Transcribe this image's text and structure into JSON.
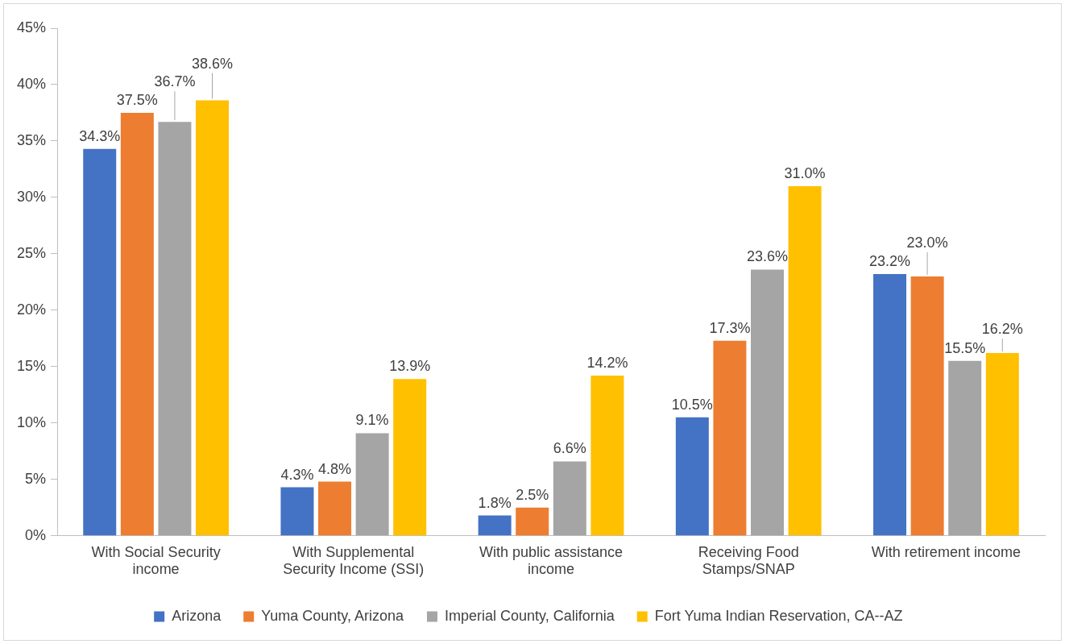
{
  "chart_data": {
    "type": "bar",
    "categories": [
      "With Social Security income",
      "With Supplemental Security Income (SSI)",
      "With public assistance income",
      "Receiving Food Stamps/SNAP",
      "With retirement income"
    ],
    "series": [
      {
        "name": "Arizona",
        "color": "#4472c4",
        "values": [
          34.3,
          4.3,
          1.8,
          10.5,
          23.2
        ],
        "value_labels": [
          "34.3%",
          "4.3%",
          "1.8%",
          "10.5%",
          "23.2%"
        ]
      },
      {
        "name": "Yuma County, Arizona",
        "color": "#ed7d31",
        "values": [
          37.5,
          4.8,
          2.5,
          17.3,
          23.0
        ],
        "value_labels": [
          "37.5%",
          "4.8%",
          "2.5%",
          "17.3%",
          "23.0%"
        ]
      },
      {
        "name": "Imperial County, California",
        "color": "#a5a5a5",
        "values": [
          36.7,
          9.1,
          6.6,
          23.6,
          15.5
        ],
        "value_labels": [
          "36.7%",
          "9.1%",
          "6.6%",
          "23.6%",
          "15.5%"
        ]
      },
      {
        "name": "Fort Yuma Indian Reservation, CA--AZ",
        "color": "#ffc000",
        "values": [
          38.6,
          13.9,
          14.2,
          31.0,
          16.2
        ],
        "value_labels": [
          "38.6%",
          "13.9%",
          "14.2%",
          "31.0%",
          "16.2%"
        ]
      }
    ],
    "ylim": [
      0,
      45
    ],
    "yticks": [
      {
        "value": 0,
        "label": "0%"
      },
      {
        "value": 5,
        "label": "5%"
      },
      {
        "value": 10,
        "label": "10%"
      },
      {
        "value": 15,
        "label": "15%"
      },
      {
        "value": 20,
        "label": "20%"
      },
      {
        "value": 25,
        "label": "25%"
      },
      {
        "value": 30,
        "label": "30%"
      },
      {
        "value": 35,
        "label": "35%"
      },
      {
        "value": 40,
        "label": "40%"
      },
      {
        "value": 45,
        "label": "45%"
      }
    ],
    "grid": false,
    "legend": "bottom"
  }
}
